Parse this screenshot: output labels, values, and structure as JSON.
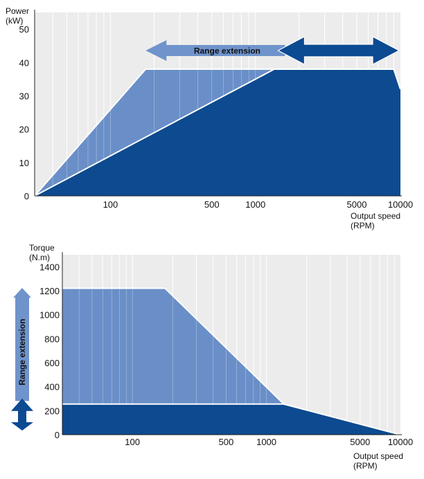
{
  "colors": {
    "plot_bg": "#ececec",
    "grid": "#ffffff",
    "dark_area": "#0d4a8f",
    "light_area": "#6a8fc8",
    "light_arrow": "#6f93cb",
    "dark_arrow": "#0c4a91",
    "white_line": "#ffffff",
    "text": "#111111"
  },
  "chart_data": [
    {
      "type": "area",
      "xscale": "log",
      "xlim": [
        30,
        10000
      ],
      "ylim": [
        0,
        55
      ],
      "xlabel": "Output speed (RPM)",
      "ylabel": "Power (kW)",
      "ylabel_lines": [
        "Power",
        "(kW)"
      ],
      "xlabel_lines": [
        "Output speed",
        "(RPM)"
      ],
      "yticks": [
        0,
        10,
        20,
        30,
        40,
        50
      ],
      "xticks": [
        100,
        500,
        1000,
        5000,
        10000
      ],
      "series": [
        {
          "x": [
            30,
            175,
            9000,
            10000
          ],
          "y": [
            0,
            38,
            38,
            32
          ]
        },
        {
          "x": [
            30,
            1350,
            9000,
            10000
          ],
          "y": [
            0,
            38,
            38,
            32
          ]
        }
      ],
      "annotations": [
        {
          "text": "Range extension",
          "x_from": 175,
          "x_to": 1600,
          "y": 49,
          "style": "arrow-light"
        },
        {
          "text": "",
          "x_from": 1600,
          "x_to": 10000,
          "y": 49,
          "style": "arrow-dark"
        }
      ]
    },
    {
      "type": "area",
      "xscale": "log",
      "xlim": [
        30,
        10000
      ],
      "ylim": [
        0,
        1500
      ],
      "xlabel": "Output speed (RPM)",
      "ylabel": "Torque (N.m)",
      "ylabel_lines": [
        "Torque",
        "(N.m)"
      ],
      "xlabel_lines": [
        "Output speed",
        "(RPM)"
      ],
      "yticks": [
        0,
        200,
        400,
        600,
        800,
        1000,
        1200,
        1400
      ],
      "xticks": [
        100,
        500,
        1000,
        5000,
        10000
      ],
      "series": [
        {
          "x": [
            30,
            175,
            1350,
            10000
          ],
          "y": [
            1220,
            1220,
            255,
            0
          ]
        },
        {
          "x": [
            30,
            1350,
            10000
          ],
          "y": [
            255,
            255,
            0
          ]
        }
      ],
      "annotations": [
        {
          "text": "Range extension",
          "y_from": 270,
          "y_to": 1200,
          "style": "vertical-arrow-light"
        },
        {
          "text": "",
          "y_from": 0,
          "y_to": 255,
          "style": "vertical-arrow-dark"
        }
      ]
    }
  ]
}
